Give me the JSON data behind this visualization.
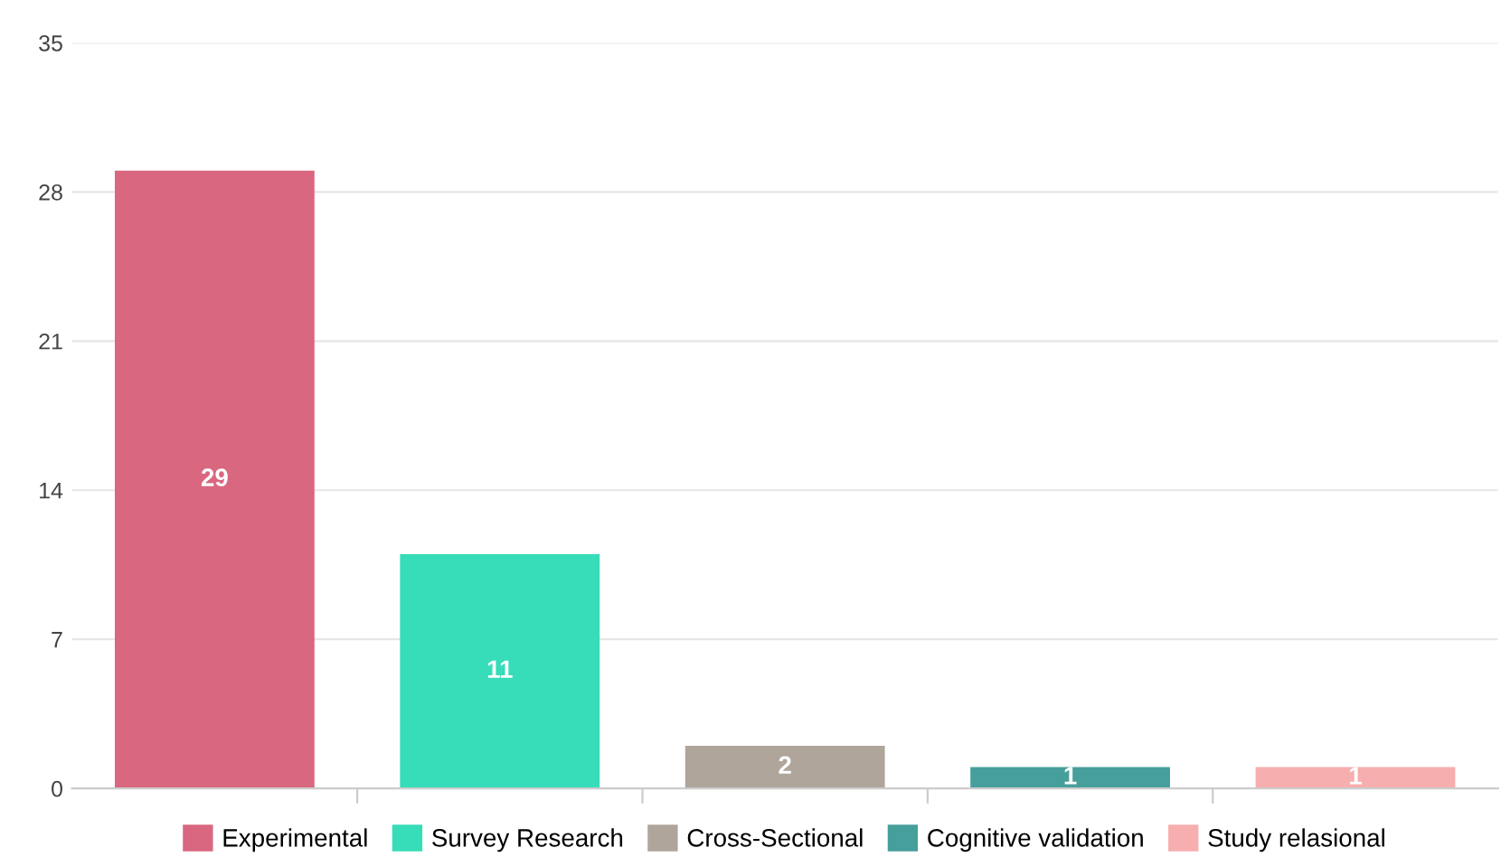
{
  "chart_data": {
    "type": "bar",
    "categories": [
      null,
      null,
      null,
      null,
      null
    ],
    "series": [
      {
        "name": "Experimental",
        "color": "#d9677f",
        "values": [
          29,
          null,
          null,
          null,
          null
        ]
      },
      {
        "name": "Survey Research",
        "color": "#36ddb8",
        "values": [
          null,
          11,
          null,
          null,
          null
        ]
      },
      {
        "name": "Cross-Sectional",
        "color": "#b0a59b",
        "values": [
          null,
          null,
          2,
          null,
          null
        ]
      },
      {
        "name": "Cognitive validation",
        "color": "#479f9c",
        "values": [
          null,
          null,
          null,
          1,
          null
        ]
      },
      {
        "name": "Study relasional",
        "color": "#f7aeae",
        "values": [
          null,
          null,
          null,
          null,
          1
        ]
      }
    ],
    "ylim": [
      0,
      35
    ],
    "yticks": [
      0,
      7,
      14,
      21,
      28,
      35
    ],
    "grid": "y",
    "legend": "bottom",
    "data_labels": true
  }
}
